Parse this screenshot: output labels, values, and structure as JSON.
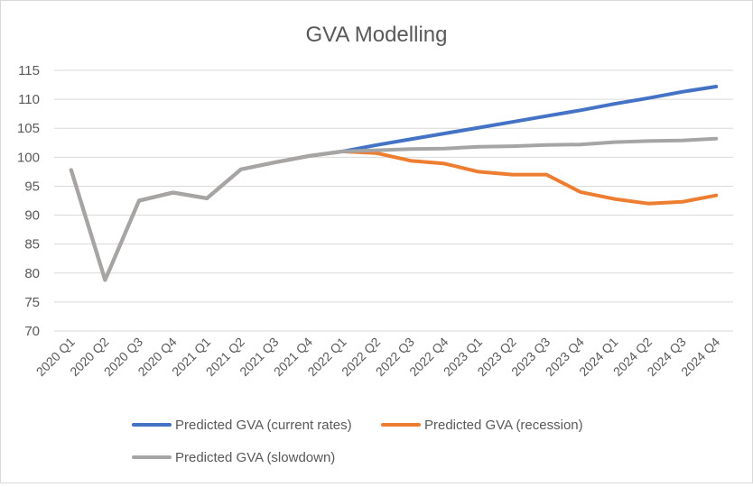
{
  "chart_data": {
    "type": "line",
    "title": "GVA Modelling",
    "xlabel": "",
    "ylabel": "",
    "ylim": [
      70,
      115
    ],
    "yticks": [
      70,
      75,
      80,
      85,
      90,
      95,
      100,
      105,
      110,
      115
    ],
    "grid": true,
    "legend_position": "bottom",
    "categories": [
      "2020 Q1",
      "2020 Q2",
      "2020 Q3",
      "2020 Q4",
      "2021 Q1",
      "2021 Q2",
      "2021 Q3",
      "2021 Q4",
      "2022 Q1",
      "2022 Q2",
      "2022 Q3",
      "2022 Q4",
      "2023 Q1",
      "2023 Q2",
      "2023 Q3",
      "2023 Q4",
      "2024 Q1",
      "2024 Q2",
      "2024 Q3",
      "2024 Q4"
    ],
    "series": [
      {
        "name": "Predicted GVA (current rates)",
        "color": "#4472C4",
        "values": [
          97.8,
          78.8,
          92.5,
          93.9,
          92.9,
          97.9,
          99.1,
          100.2,
          101.0,
          102.1,
          103.1,
          104.1,
          105.1,
          106.1,
          107.1,
          108.1,
          109.2,
          110.2,
          111.3,
          112.2
        ]
      },
      {
        "name": "Predicted GVA (recession)",
        "color": "#ED7D31",
        "values": [
          97.8,
          78.8,
          92.5,
          93.9,
          92.9,
          97.9,
          99.1,
          100.2,
          101.0,
          100.7,
          99.4,
          98.9,
          97.5,
          97.0,
          97.0,
          94.0,
          92.8,
          92.0,
          92.3,
          93.4
        ]
      },
      {
        "name": "Predicted GVA (slowdown)",
        "color": "#A5A5A5",
        "values": [
          97.8,
          78.8,
          92.5,
          93.9,
          92.9,
          97.9,
          99.1,
          100.2,
          101.0,
          101.2,
          101.4,
          101.5,
          101.8,
          101.9,
          102.1,
          102.2,
          102.6,
          102.8,
          102.9,
          103.2
        ]
      }
    ]
  }
}
